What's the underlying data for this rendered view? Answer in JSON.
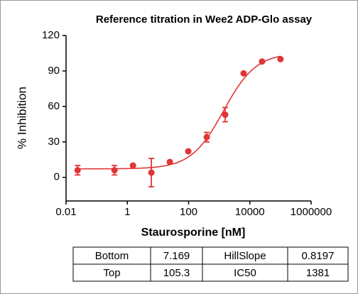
{
  "chart_data": {
    "type": "scatter",
    "title": "Reference titration in Wee2 ADP-Glo assay",
    "x_label": "Staurosporine [nM]",
    "y_label": "% Inhibition",
    "x_scale": "log",
    "xlim": [
      0.01,
      1000000
    ],
    "xticks": [
      0.01,
      1,
      100,
      10000,
      1000000
    ],
    "ylim": [
      -20,
      120
    ],
    "yticks": [
      0,
      30,
      60,
      90,
      120
    ],
    "color": "#e03535",
    "x": [
      0.0238,
      0.381,
      1.53,
      6.1,
      24.4,
      97.7,
      391,
      1563,
      6250,
      25000,
      100000
    ],
    "values": [
      6,
      6,
      10,
      4,
      13,
      22,
      34,
      53,
      88,
      98,
      100
    ],
    "errors": [
      4,
      4,
      null,
      12,
      null,
      null,
      4,
      6,
      null,
      null,
      null
    ],
    "fit_table": [
      {
        "label": "Bottom",
        "value": 7.169
      },
      {
        "label": "HillSlope",
        "value": 0.8197
      },
      {
        "label": "Top",
        "value": 105.3
      },
      {
        "label": "IC50",
        "value": 1381
      }
    ]
  }
}
